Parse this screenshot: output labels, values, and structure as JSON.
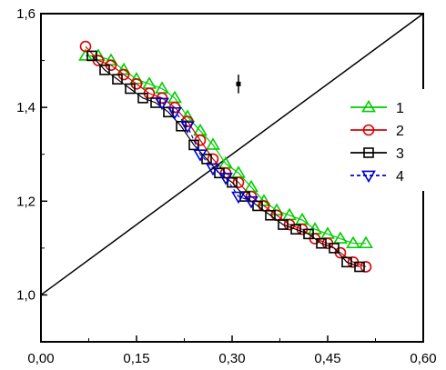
{
  "chart_data": {
    "type": "line",
    "title": "",
    "xlabel": "",
    "ylabel": "",
    "xlim": [
      0.0,
      0.6
    ],
    "ylim": [
      0.9,
      1.6
    ],
    "x_ticks": [
      0.0,
      0.15,
      0.3,
      0.45,
      0.6
    ],
    "x_tick_labels": [
      "0,00",
      "0,15",
      "0,30",
      "0,45",
      "0,60"
    ],
    "y_ticks": [
      1.0,
      1.2,
      1.4,
      1.6
    ],
    "y_tick_labels": [
      "1,0",
      "1,2",
      "1,4",
      "1,6"
    ],
    "grid": false,
    "legend_position": "right",
    "reference_line": {
      "x": [
        0.0,
        0.6
      ],
      "y": [
        1.0,
        1.6
      ],
      "color": "#000000"
    },
    "error_point": {
      "x": 0.31,
      "y": 1.45,
      "yerr": 0.02
    },
    "series": [
      {
        "name": "1",
        "marker": "triangle-up",
        "color": "#00cc00",
        "x": [
          0.07,
          0.09,
          0.11,
          0.13,
          0.15,
          0.17,
          0.19,
          0.21,
          0.23,
          0.25,
          0.27,
          0.29,
          0.31,
          0.33,
          0.35,
          0.37,
          0.39,
          0.41,
          0.43,
          0.45,
          0.47,
          0.49,
          0.51
        ],
        "y": [
          1.51,
          1.51,
          1.5,
          1.48,
          1.46,
          1.45,
          1.44,
          1.42,
          1.38,
          1.35,
          1.32,
          1.28,
          1.26,
          1.23,
          1.2,
          1.18,
          1.17,
          1.16,
          1.14,
          1.13,
          1.12,
          1.11,
          1.11
        ]
      },
      {
        "name": "2",
        "marker": "circle",
        "color": "#dd0000",
        "x": [
          0.07,
          0.09,
          0.11,
          0.13,
          0.15,
          0.17,
          0.19,
          0.21,
          0.23,
          0.25,
          0.27,
          0.29,
          0.31,
          0.33,
          0.35,
          0.37,
          0.39,
          0.41,
          0.43,
          0.45,
          0.47,
          0.49,
          0.51
        ],
        "y": [
          1.53,
          1.5,
          1.49,
          1.47,
          1.45,
          1.43,
          1.42,
          1.4,
          1.37,
          1.33,
          1.29,
          1.26,
          1.24,
          1.21,
          1.19,
          1.17,
          1.15,
          1.14,
          1.12,
          1.11,
          1.09,
          1.07,
          1.06
        ]
      },
      {
        "name": "3",
        "marker": "square",
        "color": "#000000",
        "x": [
          0.08,
          0.1,
          0.12,
          0.14,
          0.16,
          0.18,
          0.2,
          0.22,
          0.24,
          0.26,
          0.28,
          0.3,
          0.32,
          0.34,
          0.36,
          0.38,
          0.4,
          0.42,
          0.44,
          0.46,
          0.48,
          0.5
        ],
        "y": [
          1.51,
          1.48,
          1.46,
          1.44,
          1.42,
          1.41,
          1.39,
          1.36,
          1.32,
          1.29,
          1.26,
          1.24,
          1.21,
          1.19,
          1.17,
          1.15,
          1.14,
          1.13,
          1.11,
          1.1,
          1.07,
          1.06
        ]
      },
      {
        "name": "4",
        "marker": "triangle-down",
        "color": "#0000cc",
        "dashed": true,
        "x": [
          0.19,
          0.21,
          0.23,
          0.25,
          0.27,
          0.29,
          0.31,
          0.33
        ],
        "y": [
          1.41,
          1.39,
          1.36,
          1.3,
          1.27,
          1.25,
          1.21,
          1.2
        ]
      }
    ]
  }
}
